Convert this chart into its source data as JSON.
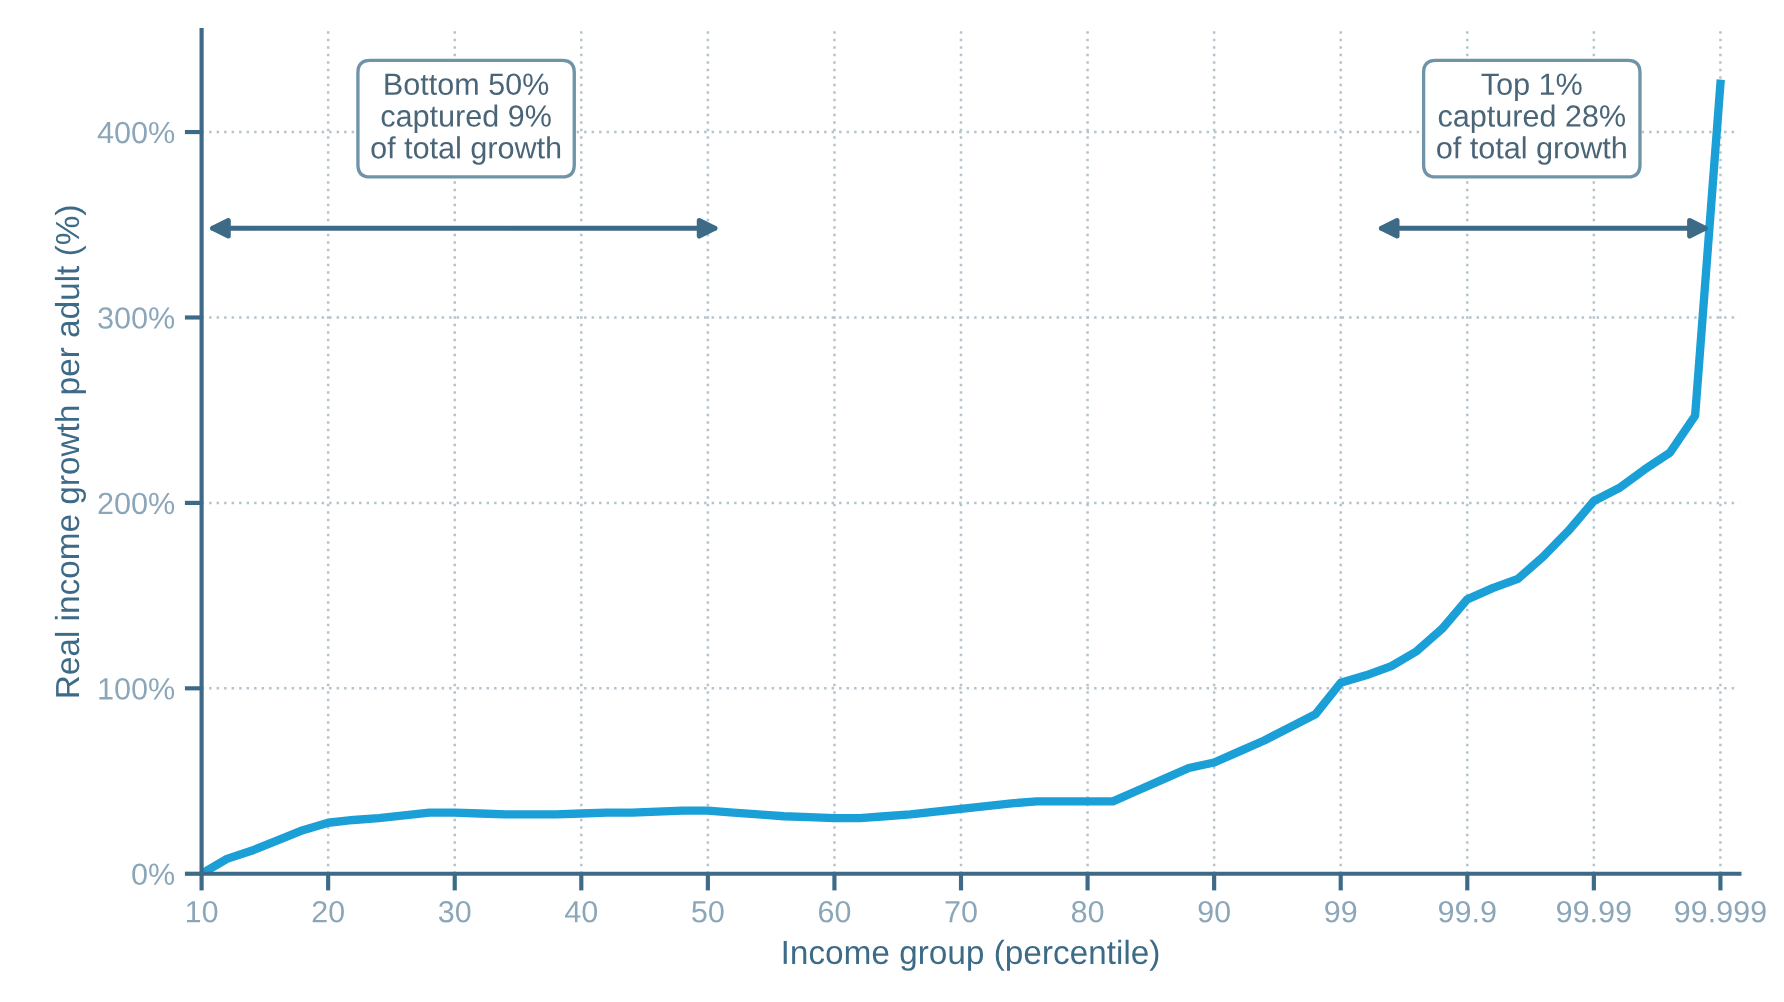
{
  "chart_data": {
    "type": "line",
    "xlabel": "Income group (percentile)",
    "ylabel": "Real income growth per adult (%)",
    "categories": [
      "10",
      null,
      null,
      null,
      null,
      "20",
      null,
      null,
      null,
      null,
      "30",
      null,
      null,
      null,
      null,
      "40",
      null,
      null,
      null,
      null,
      "50",
      null,
      null,
      null,
      null,
      "60",
      null,
      null,
      null,
      null,
      "70",
      null,
      null,
      null,
      null,
      "80",
      null,
      null,
      null,
      null,
      "90",
      null,
      null,
      null,
      null,
      "99",
      null,
      null,
      null,
      null,
      "99.9",
      null,
      null,
      null,
      null,
      "99.99",
      null,
      null,
      null,
      null,
      "99.999"
    ],
    "series": [
      {
        "color": "#1a9fd6",
        "values": [
          0,
          8,
          12.5,
          18,
          23.5,
          27.5,
          29,
          30,
          31.5,
          33,
          33,
          32.5,
          32,
          32,
          32,
          32.5,
          33,
          33,
          33.5,
          34,
          34,
          33,
          32,
          31,
          30.5,
          30,
          30,
          31,
          32,
          33.5,
          35,
          36.5,
          38,
          39,
          39,
          39,
          39,
          45,
          51,
          57,
          60,
          66,
          72,
          79,
          86,
          103,
          107,
          112,
          120,
          132,
          148,
          154,
          159,
          171,
          185,
          201,
          208,
          218,
          227,
          247,
          426
        ]
      }
    ],
    "ylim": [
      0,
      455
    ],
    "yticks": [
      {
        "value": 0,
        "label": "0%"
      },
      {
        "value": 100,
        "label": "100%"
      },
      {
        "value": 200,
        "label": "200%"
      },
      {
        "value": 300,
        "label": "300%"
      },
      {
        "value": 400,
        "label": "400%"
      }
    ],
    "grid": true,
    "legend": false,
    "marker": "none",
    "line_style": "solid",
    "annotations": [
      "Bottom 50%\ncaptured 9%\nof total growth",
      "Top 1%\ncaptured 28%\nof total growth"
    ]
  }
}
